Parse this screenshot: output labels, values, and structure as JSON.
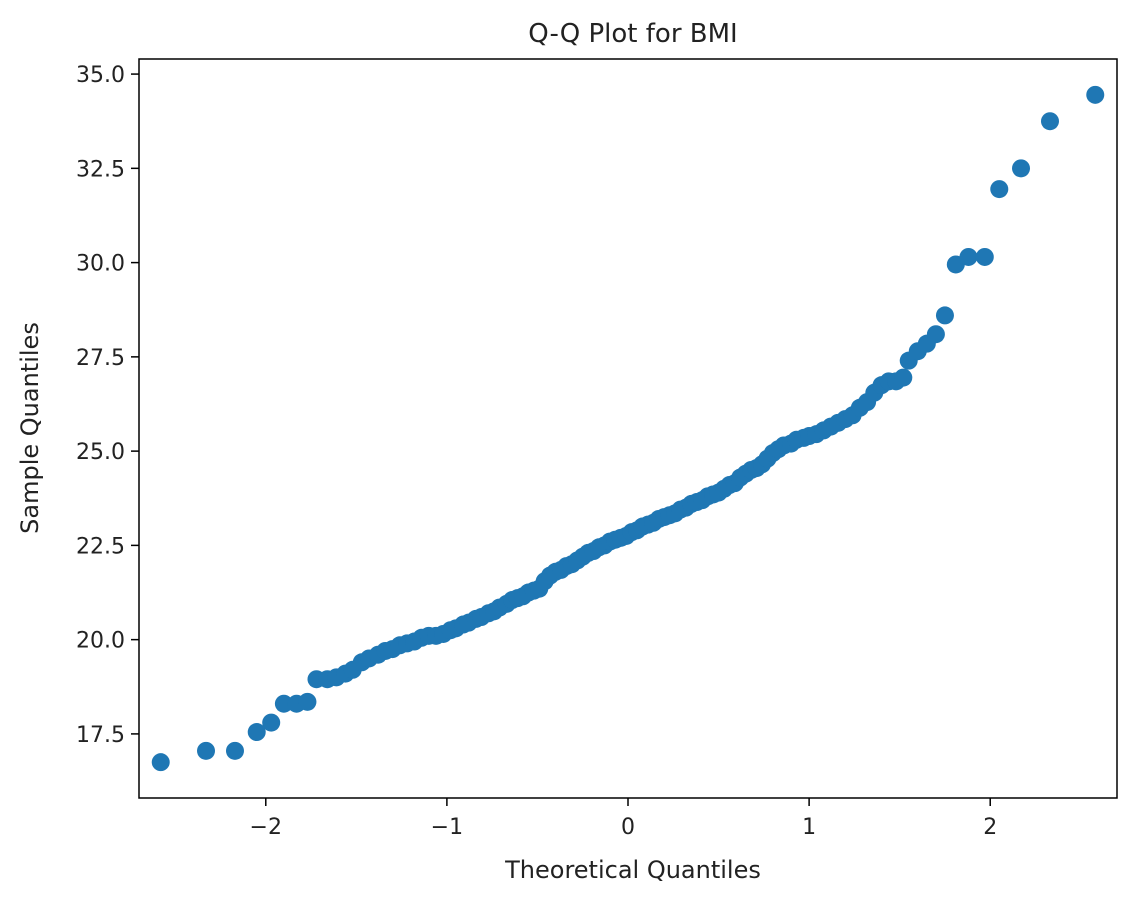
{
  "chart_data": {
    "type": "scatter",
    "title": "Q-Q Plot for BMI",
    "xlabel": "Theoretical Quantiles",
    "ylabel": "Sample Quantiles",
    "xlim": [
      -2.7,
      2.7
    ],
    "ylim": [
      15.8,
      35.4
    ],
    "x_ticks": [
      -2,
      -1,
      0,
      1,
      2
    ],
    "x_tick_labels": [
      "−2",
      "−1",
      "0",
      "1",
      "2"
    ],
    "y_ticks": [
      17.5,
      20.0,
      22.5,
      25.0,
      27.5,
      30.0,
      32.5,
      35.0
    ],
    "y_tick_labels": [
      "17.5",
      "20.0",
      "22.5",
      "25.0",
      "27.5",
      "30.0",
      "32.5",
      "35.0"
    ],
    "grid": false,
    "marker_color": "#1f77b4",
    "points": [
      [
        -2.58,
        16.75
      ],
      [
        -2.33,
        17.05
      ],
      [
        -2.17,
        17.05
      ],
      [
        -2.05,
        17.55
      ],
      [
        -1.97,
        17.8
      ],
      [
        -1.9,
        18.3
      ],
      [
        -1.83,
        18.3
      ],
      [
        -1.77,
        18.35
      ],
      [
        -1.72,
        18.95
      ],
      [
        -1.66,
        18.95
      ],
      [
        -1.61,
        19.0
      ],
      [
        -1.56,
        19.1
      ],
      [
        -1.52,
        19.2
      ],
      [
        -1.47,
        19.4
      ],
      [
        -1.43,
        19.5
      ],
      [
        -1.38,
        19.6
      ],
      [
        -1.34,
        19.7
      ],
      [
        -1.3,
        19.75
      ],
      [
        -1.26,
        19.85
      ],
      [
        -1.22,
        19.9
      ],
      [
        -1.18,
        19.95
      ],
      [
        -1.14,
        20.05
      ],
      [
        -1.1,
        20.1
      ],
      [
        -1.06,
        20.1
      ],
      [
        -1.02,
        20.15
      ],
      [
        -0.98,
        20.25
      ],
      [
        -0.95,
        20.3
      ],
      [
        -0.91,
        20.4
      ],
      [
        -0.88,
        20.45
      ],
      [
        -0.84,
        20.55
      ],
      [
        -0.81,
        20.6
      ],
      [
        -0.77,
        20.7
      ],
      [
        -0.74,
        20.75
      ],
      [
        -0.71,
        20.85
      ],
      [
        -0.67,
        20.95
      ],
      [
        -0.64,
        21.05
      ],
      [
        -0.61,
        21.1
      ],
      [
        -0.58,
        21.15
      ],
      [
        -0.55,
        21.25
      ],
      [
        -0.52,
        21.3
      ],
      [
        -0.49,
        21.35
      ],
      [
        -0.46,
        21.55
      ],
      [
        -0.43,
        21.7
      ],
      [
        -0.4,
        21.8
      ],
      [
        -0.37,
        21.85
      ],
      [
        -0.34,
        21.95
      ],
      [
        -0.31,
        22.0
      ],
      [
        -0.28,
        22.1
      ],
      [
        -0.25,
        22.2
      ],
      [
        -0.22,
        22.3
      ],
      [
        -0.19,
        22.35
      ],
      [
        -0.16,
        22.45
      ],
      [
        -0.13,
        22.5
      ],
      [
        -0.1,
        22.6
      ],
      [
        -0.07,
        22.65
      ],
      [
        -0.04,
        22.7
      ],
      [
        -0.01,
        22.75
      ],
      [
        0.02,
        22.85
      ],
      [
        0.05,
        22.9
      ],
      [
        0.08,
        23.0
      ],
      [
        0.11,
        23.05
      ],
      [
        0.14,
        23.1
      ],
      [
        0.17,
        23.2
      ],
      [
        0.2,
        23.25
      ],
      [
        0.23,
        23.3
      ],
      [
        0.26,
        23.35
      ],
      [
        0.29,
        23.45
      ],
      [
        0.32,
        23.5
      ],
      [
        0.35,
        23.6
      ],
      [
        0.38,
        23.65
      ],
      [
        0.41,
        23.7
      ],
      [
        0.44,
        23.8
      ],
      [
        0.47,
        23.85
      ],
      [
        0.5,
        23.9
      ],
      [
        0.53,
        24.0
      ],
      [
        0.56,
        24.1
      ],
      [
        0.59,
        24.15
      ],
      [
        0.62,
        24.3
      ],
      [
        0.65,
        24.4
      ],
      [
        0.68,
        24.5
      ],
      [
        0.71,
        24.55
      ],
      [
        0.74,
        24.65
      ],
      [
        0.77,
        24.8
      ],
      [
        0.8,
        24.95
      ],
      [
        0.83,
        25.05
      ],
      [
        0.86,
        25.15
      ],
      [
        0.9,
        25.2
      ],
      [
        0.93,
        25.3
      ],
      [
        0.97,
        25.35
      ],
      [
        1.0,
        25.4
      ],
      [
        1.04,
        25.45
      ],
      [
        1.08,
        25.55
      ],
      [
        1.12,
        25.65
      ],
      [
        1.16,
        25.75
      ],
      [
        1.2,
        25.85
      ],
      [
        1.24,
        25.95
      ],
      [
        1.28,
        26.15
      ],
      [
        1.32,
        26.3
      ],
      [
        1.36,
        26.55
      ],
      [
        1.4,
        26.75
      ],
      [
        1.44,
        26.85
      ],
      [
        1.48,
        26.85
      ],
      [
        1.52,
        26.95
      ],
      [
        1.55,
        27.4
      ],
      [
        1.6,
        27.65
      ],
      [
        1.65,
        27.85
      ],
      [
        1.7,
        28.1
      ],
      [
        1.75,
        28.6
      ],
      [
        1.81,
        29.95
      ],
      [
        1.88,
        30.15
      ],
      [
        1.97,
        30.15
      ],
      [
        2.05,
        31.95
      ],
      [
        2.17,
        32.5
      ],
      [
        2.33,
        33.75
      ],
      [
        2.58,
        34.45
      ]
    ]
  }
}
